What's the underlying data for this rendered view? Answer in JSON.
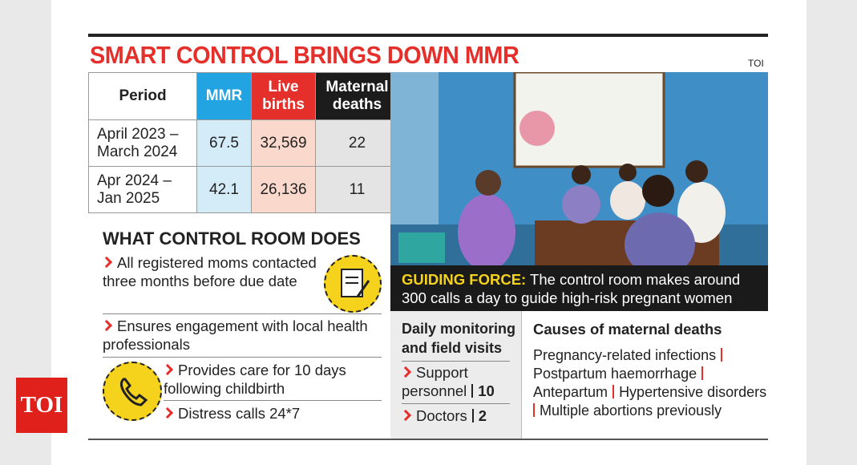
{
  "header": {
    "title": "SMART CONTROL BRINGS DOWN MMR",
    "source": "TOI"
  },
  "table": {
    "headers": [
      "Period",
      "MMR",
      "Live births",
      "Maternal deaths"
    ],
    "rows": [
      [
        "April 2023 – March 2024",
        "67.5",
        "32,569",
        "22"
      ],
      [
        "Apr 2024 – Jan 2025",
        "42.1",
        "26,136",
        "11"
      ]
    ]
  },
  "photo": {
    "caption_label": "GUIDING FORCE:",
    "caption": "The control room makes around 300 calls a day to guide high-risk pregnant women"
  },
  "control_room": {
    "title": "WHAT CONTROL ROOM DOES",
    "items": [
      "All registered moms contacted three months before due date",
      "Ensures engagement with local health professionals",
      "Provides care for 10 days following childbirth",
      "Distress calls 24*7"
    ]
  },
  "monitoring": {
    "title": "Daily monitoring and field visits",
    "items": [
      {
        "label": "Support personnel",
        "count": "10"
      },
      {
        "label": "Doctors",
        "count": "2"
      }
    ]
  },
  "causes": {
    "title": "Causes of maternal deaths",
    "items": [
      "Pregnancy-related infections",
      "Postpartum haemorrhage",
      "Antepartum",
      "Hypertensive disorders",
      "Multiple abortions previously"
    ]
  },
  "logo": "TOI"
}
